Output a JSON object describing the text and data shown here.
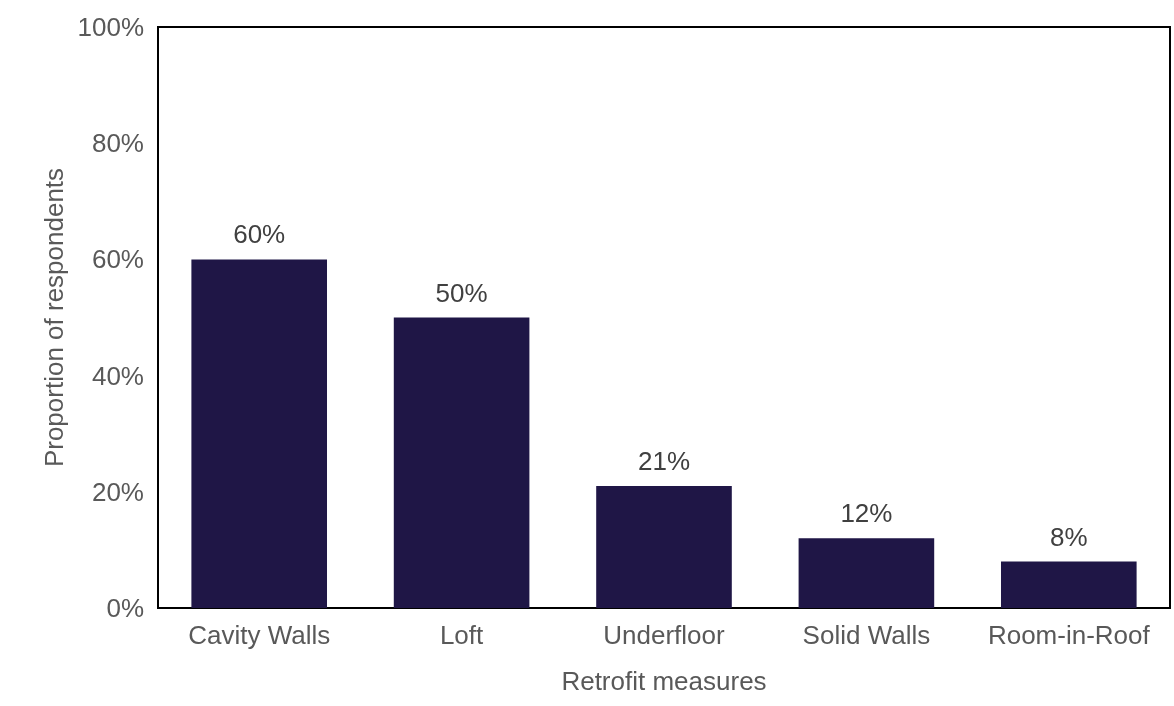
{
  "chart_data": {
    "type": "bar",
    "xlabel": "Retrofit measures",
    "ylabel": "Proportion of respondents",
    "categories": [
      "Cavity Walls",
      "Loft",
      "Underfloor",
      "Solid Walls",
      "Room-in-Roof"
    ],
    "values": [
      60,
      50,
      21,
      12,
      8
    ],
    "value_labels": [
      "60%",
      "50%",
      "21%",
      "12%",
      "8%"
    ],
    "color": "#1f1646",
    "ylim": [
      0,
      100
    ],
    "yticks": [
      {
        "value": 0,
        "label": "0%"
      },
      {
        "value": 20,
        "label": "20%"
      },
      {
        "value": 40,
        "label": "40%"
      },
      {
        "value": 60,
        "label": "60%"
      },
      {
        "value": 80,
        "label": "80%"
      },
      {
        "value": 100,
        "label": "100%"
      }
    ],
    "grid": false
  }
}
